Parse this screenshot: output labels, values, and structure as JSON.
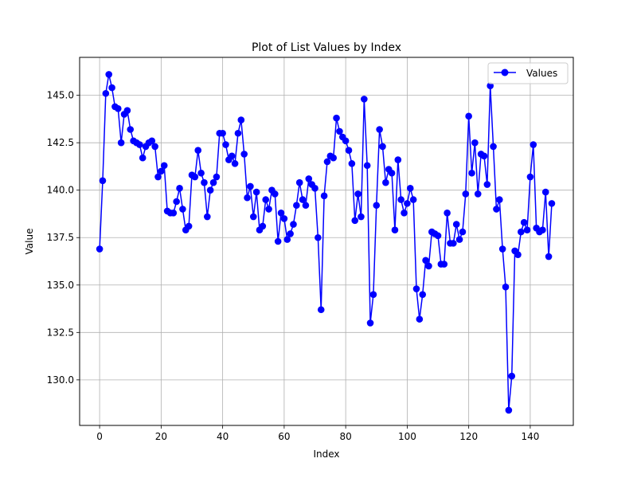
{
  "chart_data": {
    "type": "line",
    "title": "Plot of List Values by Index",
    "xlabel": "Index",
    "ylabel": "Value",
    "xlim": [
      -6.5,
      154.0
    ],
    "ylim": [
      127.6,
      147.0
    ],
    "xticks": [
      0,
      20,
      40,
      60,
      80,
      100,
      120,
      140
    ],
    "yticks": [
      130.0,
      132.5,
      135.0,
      137.5,
      140.0,
      142.5,
      145.0
    ],
    "xtick_labels": [
      "0",
      "20",
      "40",
      "60",
      "80",
      "100",
      "120",
      "140"
    ],
    "ytick_labels": [
      "130.0",
      "132.5",
      "135.0",
      "137.5",
      "140.0",
      "142.5",
      "145.0"
    ],
    "grid": true,
    "legend": {
      "position": "top-right",
      "entries": [
        "Values"
      ]
    },
    "colors": {
      "series": "#0000ff",
      "grid": "#b0b0b0",
      "axes": "#000000"
    },
    "series": [
      {
        "name": "Values",
        "marker": "circle",
        "x": [
          0,
          1,
          2,
          3,
          4,
          5,
          6,
          7,
          8,
          9,
          10,
          11,
          12,
          13,
          14,
          15,
          16,
          17,
          18,
          19,
          20,
          21,
          22,
          23,
          24,
          25,
          26,
          27,
          28,
          29,
          30,
          31,
          32,
          33,
          34,
          35,
          36,
          37,
          38,
          39,
          40,
          41,
          42,
          43,
          44,
          45,
          46,
          47,
          48,
          49,
          50,
          51,
          52,
          53,
          54,
          55,
          56,
          57,
          58,
          59,
          60,
          61,
          62,
          63,
          64,
          65,
          66,
          67,
          68,
          69,
          70,
          71,
          72,
          73,
          74,
          75,
          76,
          77,
          78,
          79,
          80,
          81,
          82,
          83,
          84,
          85,
          86,
          87,
          88,
          89,
          90,
          91,
          92,
          93,
          94,
          95,
          96,
          97,
          98,
          99,
          100,
          101,
          102,
          103,
          104,
          105,
          106,
          107,
          108,
          109,
          110,
          111,
          112,
          113,
          114,
          115,
          116,
          117,
          118,
          119,
          120,
          121,
          122,
          123,
          124,
          125,
          126,
          127,
          128,
          129,
          130,
          131,
          132,
          133,
          134,
          135,
          136,
          137,
          138,
          139,
          140,
          141,
          142,
          143,
          144,
          145,
          146,
          147
        ],
        "values": [
          136.9,
          140.5,
          145.1,
          146.1,
          145.4,
          144.4,
          144.3,
          142.5,
          144.0,
          144.2,
          143.2,
          142.6,
          142.5,
          142.4,
          141.7,
          142.3,
          142.5,
          142.6,
          142.3,
          140.7,
          141.0,
          141.3,
          138.9,
          138.8,
          138.8,
          139.4,
          140.1,
          139.0,
          137.9,
          138.1,
          140.8,
          140.7,
          142.1,
          140.9,
          140.4,
          138.6,
          140.0,
          140.4,
          140.7,
          143.0,
          143.0,
          142.4,
          141.6,
          141.8,
          141.4,
          143.0,
          143.7,
          141.9,
          139.6,
          140.2,
          138.6,
          139.9,
          137.9,
          138.1,
          139.5,
          139.0,
          140.0,
          139.8,
          137.3,
          138.8,
          138.5,
          137.4,
          137.7,
          138.2,
          139.2,
          140.4,
          139.5,
          139.2,
          140.6,
          140.3,
          140.1,
          137.5,
          133.7,
          139.7,
          141.5,
          141.8,
          141.7,
          143.8,
          143.1,
          142.8,
          142.6,
          142.1,
          141.4,
          138.4,
          139.8,
          138.6,
          144.8,
          141.3,
          133.0,
          134.5,
          139.2,
          143.2,
          142.3,
          140.4,
          141.1,
          140.9,
          137.9,
          141.6,
          139.5,
          138.8,
          139.3,
          140.1,
          139.5,
          134.8,
          133.2,
          134.5,
          136.3,
          136.0,
          137.8,
          137.7,
          137.6,
          136.1,
          136.1,
          138.8,
          137.2,
          137.2,
          138.2,
          137.4,
          137.8,
          139.8,
          143.9,
          140.9,
          142.5,
          139.8,
          141.9,
          141.8,
          140.3,
          145.5,
          142.3,
          139.0,
          139.5,
          136.9,
          134.9,
          128.4,
          130.2,
          136.8,
          136.6,
          137.8,
          138.3,
          137.9,
          140.7,
          142.4,
          138.0,
          137.8,
          137.9,
          139.9,
          136.5,
          139.3
        ]
      }
    ]
  }
}
